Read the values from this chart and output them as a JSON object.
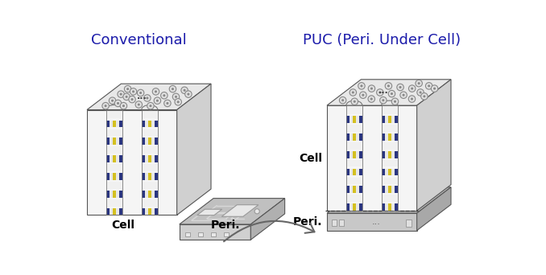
{
  "title_left": "Conventional",
  "title_right": "PUC (Peri. Under Cell)",
  "title_color": "#1a1aaa",
  "title_fontsize": 13,
  "label_cell_left": "Cell",
  "label_peri_left": "Peri.",
  "label_cell_right": "Cell",
  "label_peri_right": "Peri.",
  "label_fontsize": 10,
  "bg_color": "#ffffff",
  "cell_face_color": "#f8f8f8",
  "cell_top_color": "#e0e0e0",
  "cell_side_color": "#c8c8c8",
  "peri_face_color": "#d0d0d0",
  "peri_top_color": "#b8b8b8",
  "peri_side_color": "#a8a8a8",
  "stripe_colors_front": [
    "#e8e8e8",
    "#d0d5e8",
    "#1a237e",
    "#e8e4c0",
    "#d4c84a",
    "#e8e4c0",
    "#1a237e",
    "#d0d5e8",
    "#e8e8e8"
  ],
  "circle_edge_color": "#888888",
  "circle_face_color": "#cccccc",
  "circuit_top_color": "#c0c0c0",
  "circuit_trace_color": "#e8e8e8",
  "arrow_color": "#666666"
}
